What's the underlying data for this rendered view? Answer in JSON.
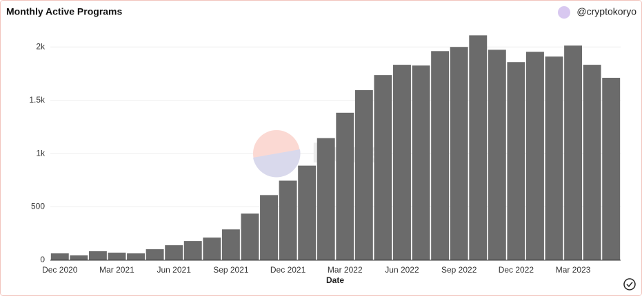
{
  "chart_data": {
    "type": "bar",
    "title": "Monthly Active Programs",
    "author": "@cryptokoryo",
    "watermark": "Dune",
    "x_label": "Date",
    "categories": [
      "Dec 2020",
      null,
      null,
      "Mar 2021",
      null,
      null,
      "Jun 2021",
      null,
      null,
      "Sep 2021",
      null,
      null,
      "Dec 2021",
      null,
      null,
      "Mar 2022",
      null,
      null,
      "Jun 2022",
      null,
      null,
      "Sep 2022",
      null,
      null,
      "Dec 2022",
      null,
      null,
      "Mar 2023",
      null,
      null
    ],
    "values": [
      64,
      45,
      84,
      71,
      64,
      103,
      141,
      180,
      212,
      289,
      437,
      611,
      746,
      887,
      1145,
      1383,
      1595,
      1736,
      1833,
      1826,
      1961,
      2000,
      2109,
      1974,
      1858,
      1955,
      1910,
      2013,
      1833,
      1711
    ],
    "color": "#6b6b6b",
    "ylim": [
      0,
      2150
    ],
    "yticks": [
      0,
      500,
      {
        "value": 1000,
        "label": "1k"
      },
      {
        "value": 1500,
        "label": "1.5k"
      },
      {
        "value": 2000,
        "label": "2k"
      }
    ],
    "grid": true
  }
}
